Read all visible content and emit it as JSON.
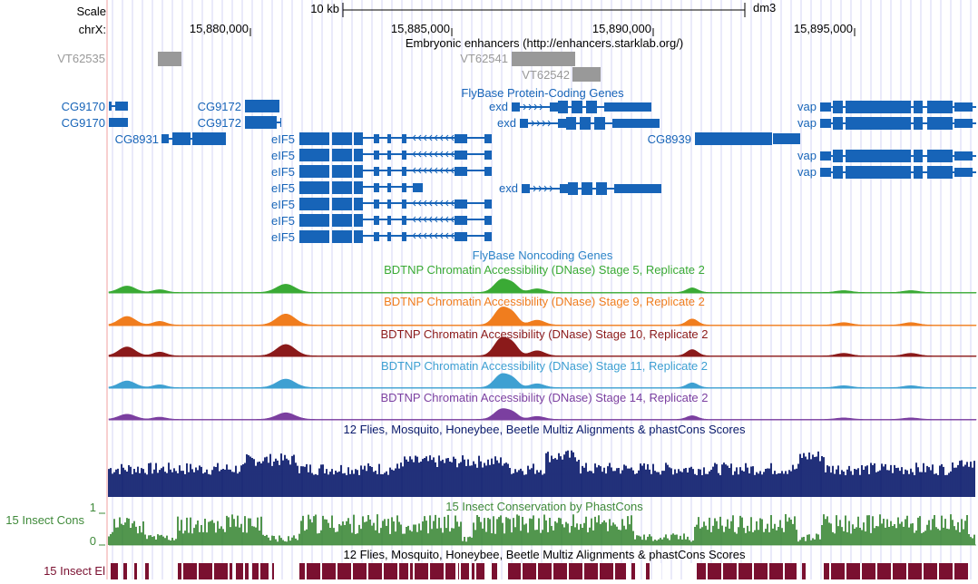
{
  "scale": {
    "label": "Scale",
    "bar_label": "10 kb",
    "assembly": "dm3"
  },
  "chrom": {
    "label": "chrX:",
    "ticks": [
      {
        "pos": 15880000,
        "label": "15,880,000"
      },
      {
        "pos": 15885000,
        "label": "15,885,000"
      },
      {
        "pos": 15890000,
        "label": "15,890,000"
      },
      {
        "pos": 15895000,
        "label": "15,895,000"
      }
    ]
  },
  "tracks": {
    "enhancers": {
      "title": "Embryonic enhancers (http://enhancers.starklab.org/)",
      "items": [
        {
          "name": "VT62535"
        },
        {
          "name": "VT62541"
        },
        {
          "name": "VT62542"
        }
      ]
    },
    "genes": {
      "title": "FlyBase Protein-Coding Genes",
      "labels": [
        "CG9170",
        "CG9170",
        "CG9172",
        "CG9172",
        "CG8931",
        "eIF5",
        "eIF5",
        "eIF5",
        "eIF5",
        "eIF5",
        "eIF5",
        "eIF5",
        "exd",
        "exd",
        "exd",
        "CG8939",
        "vap",
        "vap",
        "vap",
        "vap"
      ]
    },
    "noncoding": {
      "title": "FlyBase Noncoding Genes"
    },
    "dnase": [
      {
        "title": "BDTNP Chromatin Accessibility (DNase) Stage 5, Replicate 2",
        "color": "#3aaa35"
      },
      {
        "title": "BDTNP Chromatin Accessibility (DNase) Stage 9, Replicate 2",
        "color": "#f07d1e"
      },
      {
        "title": "BDTNP Chromatin Accessibility (DNase) Stage 10, Replicate 2",
        "color": "#8b1a1a"
      },
      {
        "title": "BDTNP Chromatin Accessibility (DNase) Stage 11, Replicate 2",
        "color": "#3ea0d2"
      },
      {
        "title": "BDTNP Chromatin Accessibility (DNase) Stage 14, Replicate 2",
        "color": "#7b3fa0"
      }
    ],
    "multiz": {
      "title": "12 Flies, Mosquito, Honeybee, Beetle Multiz Alignments & phastCons Scores",
      "color": "#0a1a6b"
    },
    "cons": {
      "title": "15 Insect Conservation by PhastCons",
      "side_label": "15 Insect Cons",
      "y_max": "1",
      "y_min": "0",
      "color": "#3f8a3a"
    },
    "elements": {
      "title": "12 Flies, Mosquito, Honeybee, Beetle Multiz Alignments & phastCons Scores",
      "side_label": "15 Insect El",
      "color": "#7a1030"
    }
  },
  "colors": {
    "gene": "#1764b8",
    "enhancer": "#999999",
    "grid": "#d6d6f5",
    "sideline": "#f2a0a0"
  }
}
